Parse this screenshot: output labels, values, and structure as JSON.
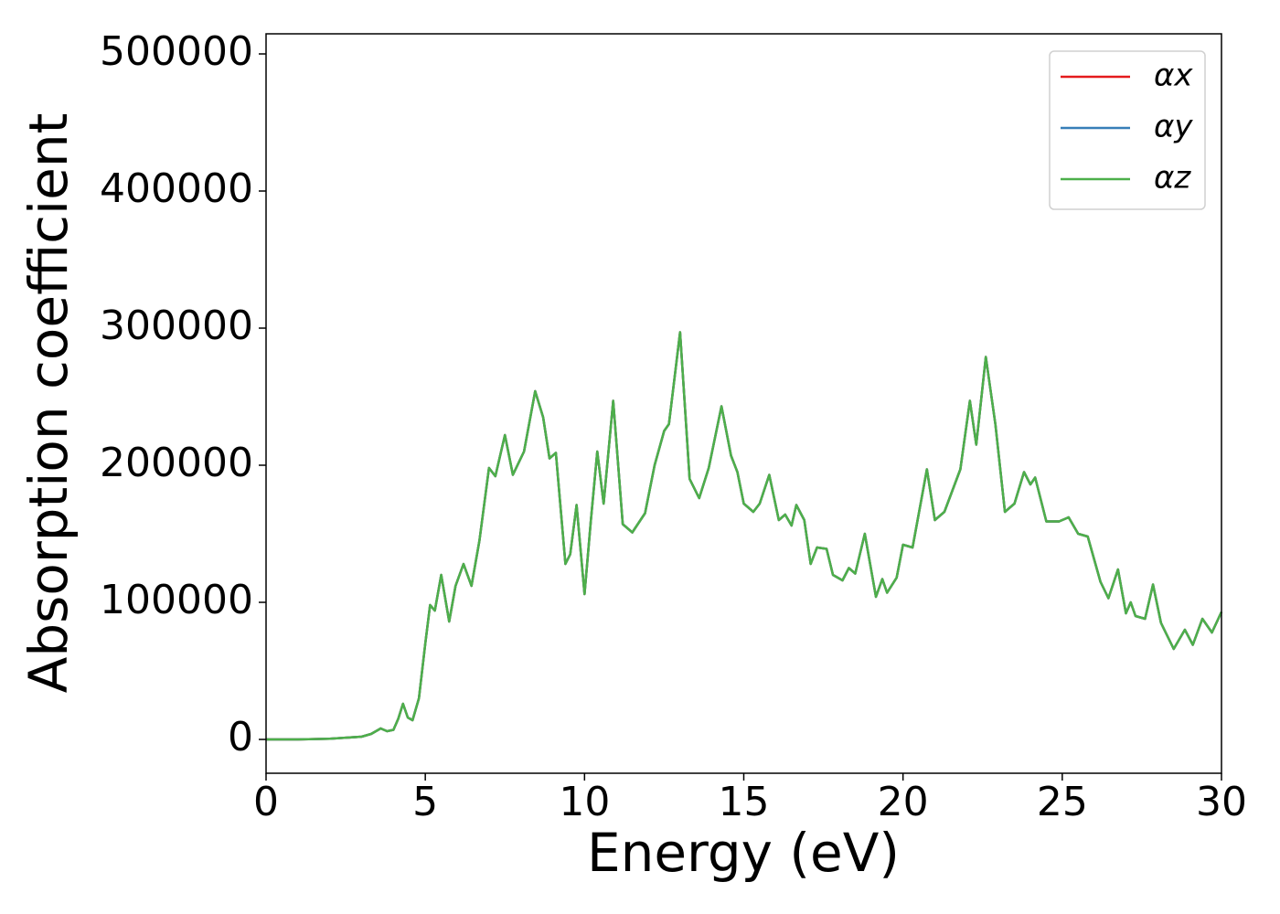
{
  "chart_data": {
    "type": "line",
    "xlabel": "Energy (eV)",
    "ylabel": "Absorption coefficient",
    "xlim": [
      0,
      30
    ],
    "ylim": [
      -24667,
      514667
    ],
    "xticks": [
      0,
      5,
      10,
      15,
      20,
      25,
      30
    ],
    "yticks": [
      0,
      100000,
      200000,
      300000,
      400000,
      500000
    ],
    "grid": false,
    "legend": "upper right",
    "x": [
      0,
      1,
      2,
      3,
      3.3,
      3.6,
      3.8,
      4.0,
      4.15,
      4.3,
      4.45,
      4.6,
      4.8,
      5.0,
      5.15,
      5.3,
      5.5,
      5.75,
      5.95,
      6.2,
      6.45,
      6.7,
      7.0,
      7.2,
      7.5,
      7.75,
      8.1,
      8.45,
      8.7,
      8.9,
      9.1,
      9.4,
      9.55,
      9.75,
      10.0,
      10.2,
      10.4,
      10.6,
      10.9,
      11.2,
      11.5,
      11.9,
      12.2,
      12.5,
      12.65,
      13.0,
      13.3,
      13.6,
      13.9,
      14.3,
      14.6,
      14.8,
      15.0,
      15.3,
      15.5,
      15.8,
      16.1,
      16.3,
      16.5,
      16.65,
      16.9,
      17.1,
      17.3,
      17.6,
      17.8,
      18.1,
      18.3,
      18.5,
      18.8,
      19.15,
      19.35,
      19.5,
      19.8,
      20.0,
      20.3,
      20.75,
      21.0,
      21.3,
      21.8,
      22.1,
      22.3,
      22.6,
      22.9,
      23.2,
      23.5,
      23.8,
      24.0,
      24.15,
      24.5,
      24.9,
      25.2,
      25.5,
      25.8,
      26.2,
      26.45,
      26.75,
      27.0,
      27.15,
      27.3,
      27.6,
      27.85,
      28.1,
      28.5,
      28.85,
      29.1,
      29.4,
      29.7,
      30
    ],
    "series": [
      {
        "name": "αx",
        "color": "#e41a1c",
        "values": [
          0,
          0,
          500,
          2000,
          4000,
          8000,
          6000,
          7000,
          15000,
          26000,
          16000,
          14000,
          30000,
          70000,
          98000,
          94000,
          120000,
          86000,
          112000,
          128000,
          112000,
          145000,
          198000,
          192000,
          222000,
          193000,
          210000,
          254000,
          235000,
          205000,
          209000,
          128000,
          135000,
          171000,
          106000,
          160000,
          210000,
          172000,
          247000,
          157000,
          151000,
          165000,
          200000,
          225000,
          230000,
          297000,
          190000,
          176000,
          198000,
          243000,
          207000,
          195000,
          172000,
          166000,
          172000,
          193000,
          160000,
          164000,
          156000,
          171000,
          160000,
          128000,
          140000,
          139000,
          120000,
          116000,
          125000,
          121000,
          150000,
          104000,
          117000,
          107000,
          118000,
          142000,
          140000,
          197000,
          160000,
          166000,
          197000,
          247000,
          215000,
          279000,
          230000,
          166000,
          172000,
          195000,
          186000,
          191000,
          159000,
          159000,
          162000,
          150000,
          148000,
          115000,
          103000,
          124000,
          92000,
          100000,
          90000,
          88000,
          113000,
          85000,
          66000,
          80000,
          69000,
          88000,
          78000,
          93000
        ]
      },
      {
        "name": "αy",
        "color": "#377eb8",
        "values": [
          0,
          0,
          500,
          2000,
          4000,
          8000,
          6000,
          7000,
          15000,
          26000,
          16000,
          14000,
          30000,
          70000,
          98000,
          94000,
          120000,
          86000,
          112000,
          128000,
          112000,
          145000,
          198000,
          192000,
          222000,
          193000,
          210000,
          254000,
          235000,
          205000,
          209000,
          128000,
          135000,
          171000,
          106000,
          160000,
          210000,
          172000,
          247000,
          157000,
          151000,
          165000,
          200000,
          225000,
          230000,
          297000,
          190000,
          176000,
          198000,
          243000,
          207000,
          195000,
          172000,
          166000,
          172000,
          193000,
          160000,
          164000,
          156000,
          171000,
          160000,
          128000,
          140000,
          139000,
          120000,
          116000,
          125000,
          121000,
          150000,
          104000,
          117000,
          107000,
          118000,
          142000,
          140000,
          197000,
          160000,
          166000,
          197000,
          247000,
          215000,
          279000,
          230000,
          166000,
          172000,
          195000,
          186000,
          191000,
          159000,
          159000,
          162000,
          150000,
          148000,
          115000,
          103000,
          124000,
          92000,
          100000,
          90000,
          88000,
          113000,
          85000,
          66000,
          80000,
          69000,
          88000,
          78000,
          93000
        ]
      },
      {
        "name": "αz",
        "color": "#4daf4a",
        "values": [
          0,
          0,
          500,
          2000,
          4000,
          8000,
          6000,
          7000,
          15000,
          26000,
          16000,
          14000,
          30000,
          70000,
          98000,
          94000,
          120000,
          86000,
          112000,
          128000,
          112000,
          145000,
          198000,
          192000,
          222000,
          193000,
          210000,
          254000,
          235000,
          205000,
          209000,
          128000,
          135000,
          171000,
          106000,
          160000,
          210000,
          172000,
          247000,
          157000,
          151000,
          165000,
          200000,
          225000,
          230000,
          297000,
          190000,
          176000,
          198000,
          243000,
          207000,
          195000,
          172000,
          166000,
          172000,
          193000,
          160000,
          164000,
          156000,
          171000,
          160000,
          128000,
          140000,
          139000,
          120000,
          116000,
          125000,
          121000,
          150000,
          104000,
          117000,
          107000,
          118000,
          142000,
          140000,
          197000,
          160000,
          166000,
          197000,
          247000,
          215000,
          279000,
          230000,
          166000,
          172000,
          195000,
          186000,
          191000,
          159000,
          159000,
          162000,
          150000,
          148000,
          115000,
          103000,
          124000,
          92000,
          100000,
          90000,
          88000,
          113000,
          85000,
          66000,
          80000,
          69000,
          88000,
          78000,
          93000
        ]
      }
    ]
  }
}
